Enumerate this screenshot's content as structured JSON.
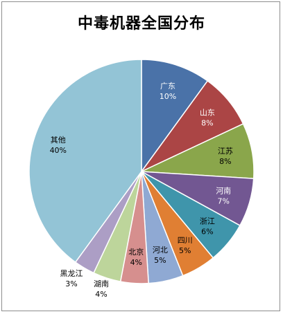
{
  "chart_data": {
    "type": "pie",
    "title": "中毒机器全国分布",
    "slices": [
      {
        "label": "广东",
        "value": 10,
        "value_label": "10%",
        "color": "#4a72a8",
        "text_color": "#ffffff"
      },
      {
        "label": "山东",
        "value": 8,
        "value_label": "8%",
        "color": "#ab4545",
        "text_color": "#ffffff"
      },
      {
        "label": "江苏",
        "value": 8,
        "value_label": "8%",
        "color": "#8aa64b",
        "text_color": "#000000"
      },
      {
        "label": "河南",
        "value": 7,
        "value_label": "7%",
        "color": "#725792",
        "text_color": "#ffffff"
      },
      {
        "label": "浙江",
        "value": 6,
        "value_label": "6%",
        "color": "#3f95ab",
        "text_color": "#000000"
      },
      {
        "label": "四川",
        "value": 5,
        "value_label": "5%",
        "color": "#e07f33",
        "text_color": "#000000"
      },
      {
        "label": "河北",
        "value": 5,
        "value_label": "5%",
        "color": "#8fa9d3",
        "text_color": "#000000"
      },
      {
        "label": "北京",
        "value": 4,
        "value_label": "4%",
        "color": "#d68f8e",
        "text_color": "#000000"
      },
      {
        "label": "湖南",
        "value": 4,
        "value_label": "4%",
        "color": "#bdd59b",
        "text_color": "#000000"
      },
      {
        "label": "黑龙江",
        "value": 3,
        "value_label": "3%",
        "color": "#ac9ec5",
        "text_color": "#000000"
      },
      {
        "label": "其他",
        "value": 40,
        "value_label": "40%",
        "color": "#93c4d6",
        "text_color": "#000000"
      }
    ]
  }
}
